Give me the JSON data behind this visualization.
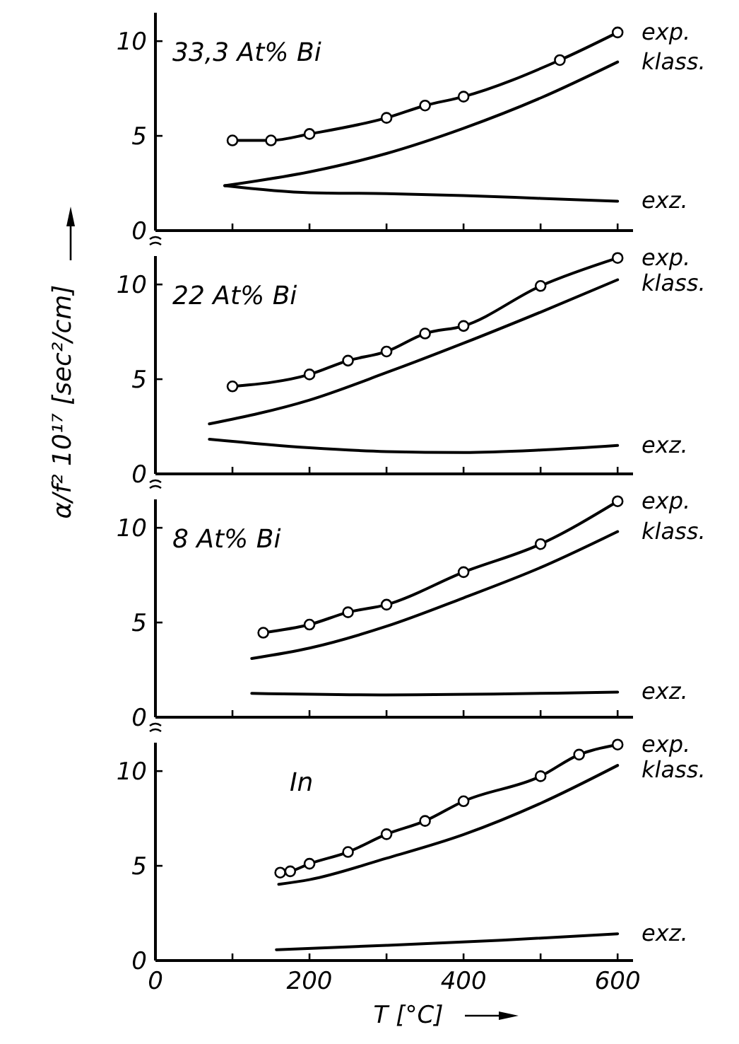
{
  "chart_data": [
    {
      "type": "line",
      "annotations": [
        "33,3 At% Bi"
      ],
      "ylabel": "α/f² 10¹⁷ [sec²/cm]",
      "xlim": [
        0,
        620
      ],
      "xticks": [
        {
          "value": 0,
          "label": null
        },
        {
          "value": 100,
          "label": null
        },
        {
          "value": 200,
          "label": null
        },
        {
          "value": 300,
          "label": null
        },
        {
          "value": 400,
          "label": null
        },
        {
          "value": 500,
          "label": null
        },
        {
          "value": 600,
          "label": null
        }
      ],
      "ylim": [
        0,
        11.5
      ],
      "yticks": [
        0,
        5,
        10
      ],
      "tick_labels": "y",
      "grid": false,
      "series": [
        {
          "name": "exp.",
          "color": "#000000",
          "marker": "circle",
          "x": [
            100,
            150,
            200,
            300,
            350,
            400,
            525,
            600
          ],
          "values": [
            4.76,
            4.76,
            5.1,
            5.95,
            6.6,
            7.07,
            9.0,
            10.46
          ]
        },
        {
          "name": "klass.",
          "color": "#000000",
          "marker": "none",
          "x": [
            90,
            200,
            300,
            400,
            500,
            600
          ],
          "values": [
            2.37,
            3.1,
            4.07,
            5.4,
            7.0,
            8.9
          ]
        },
        {
          "name": "exz.",
          "color": "#000000",
          "marker": "none",
          "x": [
            90,
            200,
            300,
            400,
            500,
            600
          ],
          "values": [
            2.37,
            2.0,
            1.95,
            1.85,
            1.7,
            1.55
          ]
        }
      ]
    },
    {
      "type": "line",
      "annotations": [
        "22 At% Bi"
      ],
      "xlim": [
        0,
        620
      ],
      "xticks": [
        {
          "value": 0,
          "label": null
        },
        {
          "value": 100,
          "label": null
        },
        {
          "value": 200,
          "label": null
        },
        {
          "value": 300,
          "label": null
        },
        {
          "value": 400,
          "label": null
        },
        {
          "value": 500,
          "label": null
        },
        {
          "value": 600,
          "label": null
        }
      ],
      "ylim": [
        0,
        11.5
      ],
      "yticks": [
        0,
        5,
        10
      ],
      "tick_labels": "y",
      "grid": false,
      "series": [
        {
          "name": "exp.",
          "color": "#000000",
          "marker": "circle",
          "x": [
            100,
            200,
            250,
            300,
            350,
            400,
            500,
            600
          ],
          "values": [
            4.62,
            5.25,
            5.98,
            6.46,
            7.41,
            7.81,
            9.92,
            11.4
          ]
        },
        {
          "name": "klass.",
          "color": "#000000",
          "marker": "none",
          "x": [
            70,
            200,
            300,
            400,
            500,
            600
          ],
          "values": [
            2.64,
            3.9,
            5.35,
            6.9,
            8.54,
            10.25
          ]
        },
        {
          "name": "exz.",
          "color": "#000000",
          "marker": "none",
          "x": [
            70,
            200,
            300,
            400,
            500,
            600
          ],
          "values": [
            1.83,
            1.38,
            1.18,
            1.13,
            1.26,
            1.5
          ]
        }
      ]
    },
    {
      "type": "line",
      "annotations": [
        "8 At% Bi"
      ],
      "xlim": [
        0,
        620
      ],
      "xticks": [
        {
          "value": 0,
          "label": null
        },
        {
          "value": 100,
          "label": null
        },
        {
          "value": 200,
          "label": null
        },
        {
          "value": 300,
          "label": null
        },
        {
          "value": 400,
          "label": null
        },
        {
          "value": 500,
          "label": null
        },
        {
          "value": 600,
          "label": null
        }
      ],
      "ylim": [
        0,
        11.5
      ],
      "yticks": [
        0,
        5,
        10
      ],
      "tick_labels": "y",
      "grid": false,
      "series": [
        {
          "name": "exp.",
          "color": "#000000",
          "marker": "circle",
          "x": [
            140,
            200,
            250,
            300,
            400,
            500,
            600
          ],
          "values": [
            4.46,
            4.89,
            5.54,
            5.94,
            7.66,
            9.14,
            11.4
          ]
        },
        {
          "name": "klass.",
          "color": "#000000",
          "marker": "none",
          "x": [
            125,
            200,
            300,
            400,
            500,
            600
          ],
          "values": [
            3.1,
            3.65,
            4.8,
            6.3,
            7.9,
            9.8
          ]
        },
        {
          "name": "exz.",
          "color": "#000000",
          "marker": "none",
          "x": [
            125,
            300,
            600
          ],
          "values": [
            1.26,
            1.18,
            1.33
          ]
        }
      ]
    },
    {
      "type": "line",
      "annotations": [
        "In"
      ],
      "xlabel": "T [°C]",
      "xlim": [
        0,
        620
      ],
      "xticks": [
        0,
        {
          "value": 100,
          "label": null
        },
        200,
        {
          "value": 300,
          "label": null
        },
        400,
        {
          "value": 500,
          "label": null
        },
        600
      ],
      "ylim": [
        0,
        11.5
      ],
      "yticks": [
        0,
        5,
        10
      ],
      "grid": false,
      "series": [
        {
          "name": "exp.",
          "color": "#000000",
          "marker": "circle",
          "x": [
            162,
            175,
            200,
            250,
            300,
            350,
            400,
            500,
            550,
            600
          ],
          "values": [
            4.64,
            4.71,
            5.11,
            5.73,
            6.67,
            7.37,
            8.41,
            9.73,
            10.87,
            11.4
          ]
        },
        {
          "name": "klass.",
          "color": "#000000",
          "marker": "none",
          "x": [
            160,
            200,
            300,
            400,
            500,
            600
          ],
          "values": [
            4.02,
            4.27,
            5.4,
            6.65,
            8.3,
            10.3
          ]
        },
        {
          "name": "exz.",
          "color": "#000000",
          "marker": "none",
          "x": [
            157,
            300,
            450,
            600
          ],
          "values": [
            0.57,
            0.8,
            1.07,
            1.41
          ]
        }
      ]
    }
  ]
}
